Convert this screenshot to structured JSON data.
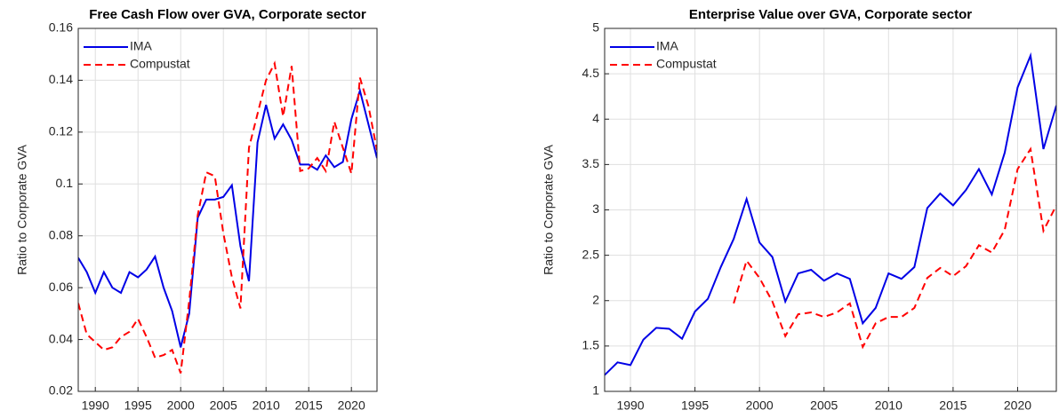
{
  "chart_data": [
    {
      "type": "line",
      "title": "Free Cash Flow over GVA, Corporate sector",
      "ylabel": "Ratio to Corporate GVA",
      "x": [
        1988,
        1989,
        1990,
        1991,
        1992,
        1993,
        1994,
        1995,
        1996,
        1997,
        1998,
        1999,
        2000,
        2001,
        2002,
        2003,
        2004,
        2005,
        2006,
        2007,
        2008,
        2009,
        2010,
        2011,
        2012,
        2013,
        2014,
        2015,
        2016,
        2017,
        2018,
        2019,
        2020,
        2021,
        2022,
        2023
      ],
      "series": [
        {
          "name": "IMA",
          "color": "#0000e6",
          "dash": "solid",
          "values": [
            0.0715,
            0.066,
            0.058,
            0.066,
            0.06,
            0.058,
            0.066,
            0.064,
            0.067,
            0.072,
            0.06,
            0.051,
            0.037,
            0.05,
            0.087,
            0.094,
            0.094,
            0.095,
            0.0995,
            0.076,
            0.0625,
            0.116,
            0.1305,
            0.1175,
            0.123,
            0.117,
            0.1075,
            0.1075,
            0.1055,
            0.111,
            0.1065,
            0.1085,
            0.125,
            0.136,
            0.123,
            0.11
          ]
        },
        {
          "name": "Compustat",
          "color": "#ff0000",
          "dash": "dashed",
          "values": [
            0.054,
            0.042,
            0.039,
            0.036,
            0.037,
            0.041,
            0.043,
            0.048,
            0.041,
            0.033,
            0.034,
            0.036,
            0.027,
            0.055,
            0.088,
            0.1045,
            0.103,
            0.081,
            0.064,
            0.052,
            0.114,
            0.127,
            0.14,
            0.1465,
            0.126,
            0.1455,
            0.105,
            0.106,
            0.11,
            0.105,
            0.124,
            0.114,
            0.104,
            0.141,
            0.13,
            0.113
          ]
        }
      ],
      "xlim": [
        1988,
        2023
      ],
      "xticks": [
        1990,
        1995,
        2000,
        2005,
        2010,
        2015,
        2020
      ],
      "ylim": [
        0.02,
        0.16
      ],
      "yticks": [
        0.02,
        0.04,
        0.06,
        0.08,
        0.1,
        0.12,
        0.14,
        0.16
      ],
      "grid": true,
      "legend": "top-left"
    },
    {
      "type": "line",
      "title": "Enterprise Value over GVA, Corporate sector",
      "ylabel": "Ratio to Corporate GVA",
      "x": [
        1988,
        1989,
        1990,
        1991,
        1992,
        1993,
        1994,
        1995,
        1996,
        1997,
        1998,
        1999,
        2000,
        2001,
        2002,
        2003,
        2004,
        2005,
        2006,
        2007,
        2008,
        2009,
        2010,
        2011,
        2012,
        2013,
        2014,
        2015,
        2016,
        2017,
        2018,
        2019,
        2020,
        2021,
        2022,
        2023
      ],
      "series": [
        {
          "name": "IMA",
          "color": "#0000e6",
          "dash": "solid",
          "values": [
            1.18,
            1.32,
            1.29,
            1.57,
            1.7,
            1.69,
            1.58,
            1.88,
            2.02,
            2.37,
            2.68,
            3.12,
            2.64,
            2.48,
            1.99,
            2.3,
            2.34,
            2.22,
            2.3,
            2.24,
            1.75,
            1.92,
            2.3,
            2.24,
            2.37,
            3.02,
            3.18,
            3.05,
            3.22,
            3.45,
            3.17,
            3.63,
            4.35,
            4.7,
            3.67,
            4.15
          ]
        },
        {
          "name": "Compustat",
          "color": "#ff0000",
          "dash": "dashed",
          "values": [
            null,
            null,
            null,
            null,
            null,
            null,
            null,
            null,
            null,
            null,
            1.97,
            2.44,
            2.25,
            1.99,
            1.61,
            1.85,
            1.87,
            1.82,
            1.87,
            1.97,
            1.49,
            1.75,
            1.82,
            1.82,
            1.92,
            2.25,
            2.36,
            2.27,
            2.38,
            2.61,
            2.53,
            2.78,
            3.45,
            3.67,
            2.77,
            3.05
          ]
        }
      ],
      "xlim": [
        1988,
        2023
      ],
      "xticks": [
        1990,
        1995,
        2000,
        2005,
        2010,
        2015,
        2020
      ],
      "ylim": [
        1,
        5
      ],
      "yticks": [
        1,
        1.5,
        2,
        2.5,
        3,
        3.5,
        4,
        4.5,
        5
      ],
      "grid": true,
      "legend": "top-left"
    }
  ]
}
